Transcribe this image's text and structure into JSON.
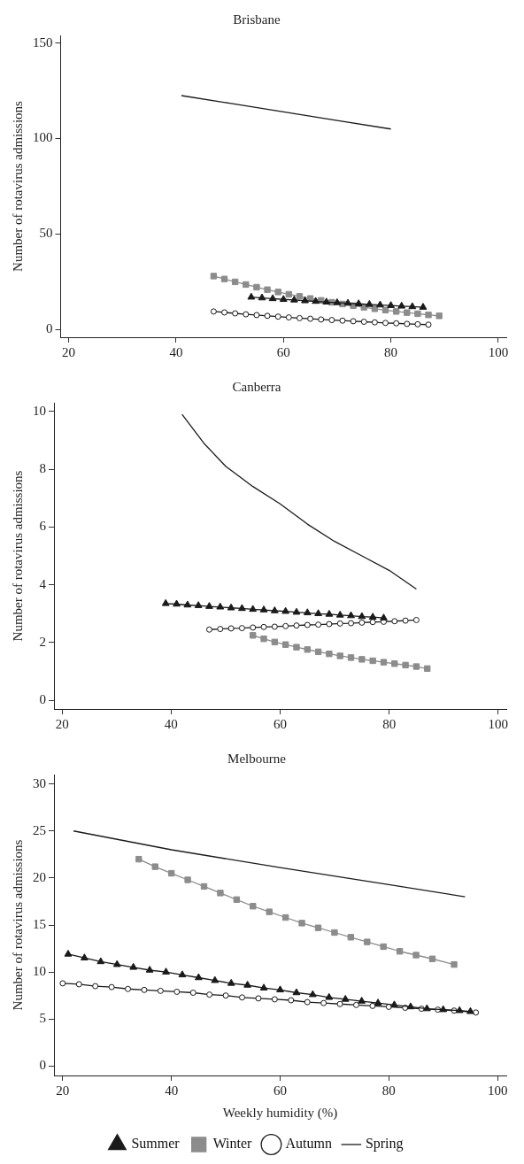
{
  "chart_data": [
    {
      "type": "line",
      "title": "Brisbane",
      "ylabel": "Number of rotavirus admissions",
      "xlim": [
        18.5,
        101.5
      ],
      "xticks": [
        20,
        40,
        60,
        80,
        100
      ],
      "ylim": [
        -4,
        154
      ],
      "yticks": [
        0,
        50,
        100,
        150
      ],
      "grid": false,
      "legend": false,
      "series": [
        {
          "color": "#1a1a1a",
          "marker": "triangle",
          "x": [
            54,
            56,
            58,
            60,
            62,
            64,
            66,
            68,
            70,
            72,
            74,
            76,
            78,
            80,
            82,
            84,
            86
          ],
          "values": [
            17,
            16.6,
            16.2,
            15.8,
            15.5,
            15.1,
            14.8,
            14.4,
            14.1,
            13.8,
            13.5,
            13.2,
            12.9,
            12.6,
            12.3,
            12,
            11.7
          ]
        },
        {
          "color": "#8c8c8c",
          "marker": "square",
          "x": [
            47,
            49,
            51,
            53,
            55,
            57,
            59,
            61,
            63,
            65,
            67,
            69,
            71,
            73,
            75,
            77,
            79,
            81,
            83,
            85,
            87,
            89
          ],
          "values": [
            28,
            26.5,
            25,
            23.6,
            22.2,
            20.9,
            19.7,
            18.5,
            17.4,
            16.3,
            15.3,
            14.3,
            13.4,
            12.5,
            11.7,
            10.9,
            10.2,
            9.5,
            8.9,
            8.3,
            7.7,
            7.2
          ]
        },
        {
          "color": "#1a1a1a",
          "marker": "circle",
          "x": [
            47,
            49,
            51,
            53,
            55,
            57,
            59,
            61,
            63,
            65,
            67,
            69,
            71,
            73,
            75,
            77,
            79,
            81,
            83,
            85,
            87
          ],
          "values": [
            9.5,
            9,
            8.5,
            8,
            7.6,
            7.2,
            6.8,
            6.4,
            6,
            5.7,
            5.3,
            5,
            4.7,
            4.4,
            4.1,
            3.8,
            3.5,
            3.3,
            3,
            2.8,
            2.6
          ]
        },
        {
          "color": "#1a1a1a",
          "marker": "none",
          "x": [
            41,
            50,
            60,
            70,
            80
          ],
          "values": [
            122.5,
            118.5,
            114,
            109.5,
            105
          ]
        }
      ]
    },
    {
      "type": "line",
      "title": "Canberra",
      "ylabel": "Number of rotavirus admissions",
      "xlim": [
        18.5,
        101.5
      ],
      "xticks": [
        20,
        40,
        60,
        80,
        100
      ],
      "ylim": [
        -0.3,
        10.3
      ],
      "yticks": [
        0,
        2,
        4,
        6,
        8,
        10
      ],
      "grid": false,
      "legend": false,
      "series": [
        {
          "color": "#1a1a1a",
          "marker": "triangle",
          "x": [
            39,
            41,
            43,
            45,
            47,
            49,
            51,
            53,
            55,
            57,
            59,
            61,
            63,
            65,
            67,
            69,
            71,
            73,
            75,
            77,
            79
          ],
          "values": [
            3.35,
            3.33,
            3.3,
            3.28,
            3.25,
            3.23,
            3.2,
            3.18,
            3.15,
            3.13,
            3.1,
            3.08,
            3.05,
            3.03,
            3,
            2.98,
            2.95,
            2.93,
            2.9,
            2.88,
            2.85
          ]
        },
        {
          "color": "#8c8c8c",
          "marker": "square",
          "x": [
            55,
            57,
            59,
            61,
            63,
            65,
            67,
            69,
            71,
            73,
            75,
            77,
            79,
            81,
            83,
            85,
            87
          ],
          "values": [
            2.25,
            2.13,
            2.02,
            1.93,
            1.84,
            1.76,
            1.68,
            1.61,
            1.54,
            1.48,
            1.42,
            1.37,
            1.32,
            1.27,
            1.22,
            1.17,
            1.1
          ]
        },
        {
          "color": "#1a1a1a",
          "marker": "circle",
          "x": [
            47,
            49,
            51,
            53,
            55,
            57,
            59,
            61,
            63,
            65,
            67,
            69,
            71,
            73,
            75,
            77,
            79,
            81,
            83,
            85
          ],
          "values": [
            2.45,
            2.47,
            2.49,
            2.5,
            2.52,
            2.54,
            2.55,
            2.57,
            2.59,
            2.61,
            2.62,
            2.64,
            2.66,
            2.67,
            2.69,
            2.71,
            2.72,
            2.74,
            2.76,
            2.78
          ]
        },
        {
          "color": "#1a1a1a",
          "marker": "none",
          "x": [
            42,
            46,
            50,
            55,
            60,
            65,
            70,
            75,
            80,
            85
          ],
          "values": [
            9.9,
            8.9,
            8.1,
            7.4,
            6.8,
            6.1,
            5.5,
            5,
            4.5,
            3.85
          ]
        }
      ]
    },
    {
      "type": "line",
      "title": "Melbourne",
      "xlabel": "Weekly humidity (%)",
      "ylabel": "Number of rotavirus admissions",
      "xlim": [
        18.4,
        101.6
      ],
      "xticks": [
        20,
        40,
        60,
        80,
        100
      ],
      "ylim": [
        -1,
        31
      ],
      "yticks": [
        0,
        5,
        10,
        15,
        20,
        25,
        30
      ],
      "grid": false,
      "legend": "bottom",
      "series": [
        {
          "name": "Summer",
          "color": "#1a1a1a",
          "marker": "triangle",
          "x": [
            21,
            24,
            27,
            30,
            33,
            36,
            39,
            42,
            45,
            48,
            51,
            54,
            57,
            60,
            63,
            66,
            69,
            72,
            75,
            78,
            81,
            84,
            87,
            90,
            93,
            95
          ],
          "values": [
            11.9,
            11.5,
            11.1,
            10.8,
            10.5,
            10.2,
            10,
            9.7,
            9.4,
            9.1,
            8.8,
            8.6,
            8.3,
            8.1,
            7.8,
            7.6,
            7.3,
            7.1,
            6.9,
            6.7,
            6.5,
            6.3,
            6.1,
            6,
            5.9,
            5.8
          ]
        },
        {
          "name": "Winter",
          "color": "#8c8c8c",
          "marker": "square",
          "x": [
            34,
            37,
            40,
            43,
            46,
            49,
            52,
            55,
            58,
            61,
            64,
            67,
            70,
            73,
            76,
            79,
            82,
            85,
            88,
            92
          ],
          "values": [
            22,
            21.2,
            20.5,
            19.8,
            19.1,
            18.4,
            17.7,
            17,
            16.4,
            15.8,
            15.2,
            14.7,
            14.2,
            13.7,
            13.2,
            12.7,
            12.2,
            11.8,
            11.4,
            10.8
          ]
        },
        {
          "name": "Autumn",
          "color": "#1a1a1a",
          "marker": "circle",
          "x": [
            20,
            23,
            26,
            29,
            32,
            35,
            38,
            41,
            44,
            47,
            50,
            53,
            56,
            59,
            62,
            65,
            68,
            71,
            74,
            77,
            80,
            83,
            86,
            89,
            92,
            96
          ],
          "values": [
            8.8,
            8.7,
            8.5,
            8.4,
            8.2,
            8.1,
            8,
            7.9,
            7.8,
            7.6,
            7.5,
            7.3,
            7.2,
            7.1,
            7,
            6.8,
            6.7,
            6.6,
            6.5,
            6.4,
            6.3,
            6.2,
            6.1,
            6,
            5.9,
            5.7
          ]
        },
        {
          "name": "Spring",
          "color": "#1a1a1a",
          "marker": "none",
          "x": [
            22,
            40,
            60,
            80,
            94
          ],
          "values": [
            25,
            23,
            21.1,
            19.3,
            18
          ]
        }
      ]
    }
  ]
}
